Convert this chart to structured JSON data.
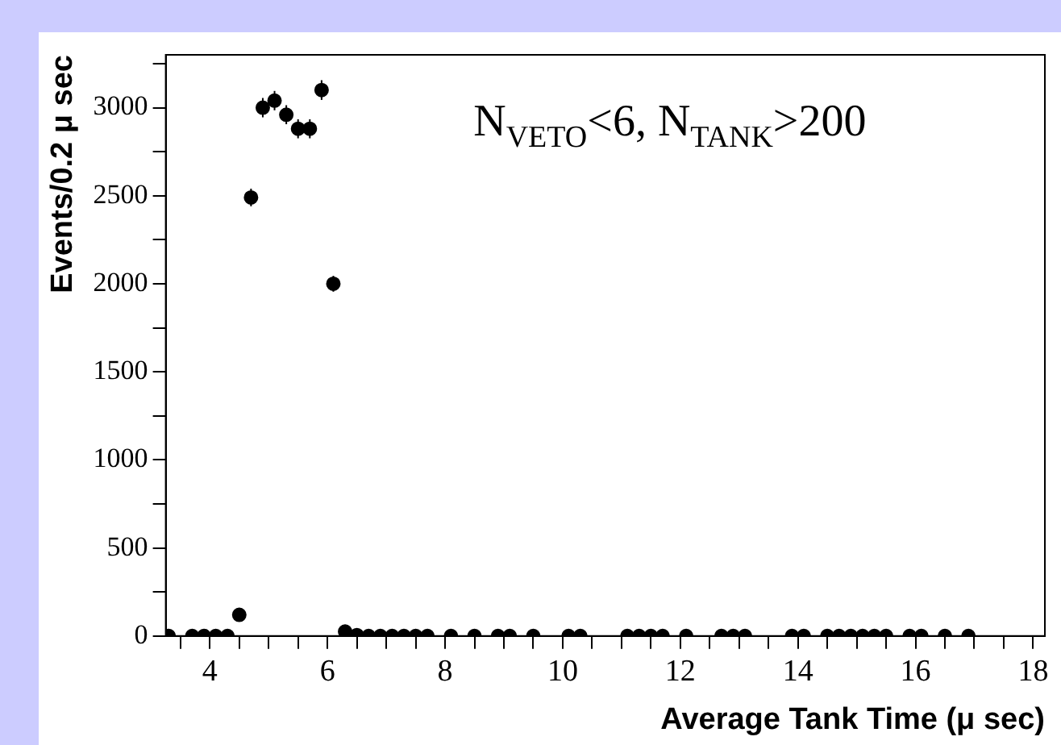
{
  "chart_data": {
    "type": "scatter",
    "xlabel": "Average Tank Time (μ sec)",
    "ylabel": "Events/0.2 μ sec",
    "annotations": [
      "N$_{VETO}$<6, N$_{TANK}$>200"
    ],
    "x": [
      3.3,
      3.7,
      3.9,
      4.1,
      4.3,
      4.5,
      4.7,
      4.9,
      5.1,
      5.3,
      5.5,
      5.7,
      5.9,
      6.1,
      6.3,
      6.5,
      6.7,
      6.9,
      7.1,
      7.3,
      7.5,
      7.7,
      8.1,
      8.5,
      8.9,
      9.1,
      9.5,
      10.1,
      10.3,
      11.1,
      11.3,
      11.5,
      11.7,
      12.1,
      12.7,
      12.9,
      13.1,
      13.9,
      14.1,
      14.5,
      14.7,
      14.9,
      15.1,
      15.3,
      15.5,
      15.9,
      16.1,
      16.5,
      16.9
    ],
    "series": [
      {
        "color": "#000000",
        "values": [
          0,
          0,
          0,
          0,
          0,
          120,
          2490,
          3000,
          3040,
          2960,
          2880,
          2880,
          3100,
          2000,
          25,
          5,
          0,
          0,
          0,
          0,
          0,
          0,
          0,
          0,
          0,
          0,
          0,
          0,
          0,
          0,
          0,
          0,
          0,
          0,
          0,
          0,
          0,
          0,
          0,
          0,
          0,
          0,
          0,
          0,
          0,
          0,
          0,
          0,
          0
        ],
        "errors": [
          null,
          null,
          null,
          null,
          null,
          null,
          50,
          55,
          55,
          54,
          54,
          54,
          56,
          45,
          null,
          null,
          null,
          null,
          null,
          null,
          null,
          null,
          null,
          null,
          null,
          null,
          null,
          null,
          null,
          null,
          null,
          null,
          null,
          null,
          null,
          null,
          null,
          null,
          null,
          null,
          null,
          null,
          null,
          null,
          null,
          null,
          null,
          null,
          null
        ]
      }
    ],
    "xlim": [
      3.25,
      18.2
    ],
    "xticks": [
      {
        "value": 3.5,
        "label": null
      },
      4,
      {
        "value": 4.5,
        "label": null
      },
      {
        "value": 5,
        "label": null
      },
      {
        "value": 5.5,
        "label": null
      },
      6,
      {
        "value": 6.5,
        "label": null
      },
      {
        "value": 7,
        "label": null
      },
      {
        "value": 7.5,
        "label": null
      },
      8,
      {
        "value": 8.5,
        "label": null
      },
      {
        "value": 9,
        "label": null
      },
      {
        "value": 9.5,
        "label": null
      },
      10,
      {
        "value": 10.5,
        "label": null
      },
      {
        "value": 11,
        "label": null
      },
      {
        "value": 11.5,
        "label": null
      },
      12,
      {
        "value": 12.5,
        "label": null
      },
      {
        "value": 13,
        "label": null
      },
      {
        "value": 13.5,
        "label": null
      },
      14,
      {
        "value": 14.5,
        "label": null
      },
      {
        "value": 15,
        "label": null
      },
      {
        "value": 15.5,
        "label": null
      },
      16,
      {
        "value": 16.5,
        "label": null
      },
      {
        "value": 17,
        "label": null
      },
      {
        "value": 17.5,
        "label": null
      },
      18
    ],
    "ylim": [
      0,
      3300
    ],
    "yticks": [
      0,
      {
        "value": 250,
        "label": null
      },
      500,
      {
        "value": 750,
        "label": null
      },
      1000,
      {
        "value": 1250,
        "label": null
      },
      1500,
      {
        "value": 1750,
        "label": null
      },
      2000,
      {
        "value": 2250,
        "label": null
      },
      2500,
      {
        "value": 2750,
        "label": null
      },
      3000,
      {
        "value": 3250,
        "label": null
      }
    ],
    "grid": false,
    "legend": false,
    "marker": "circle"
  }
}
